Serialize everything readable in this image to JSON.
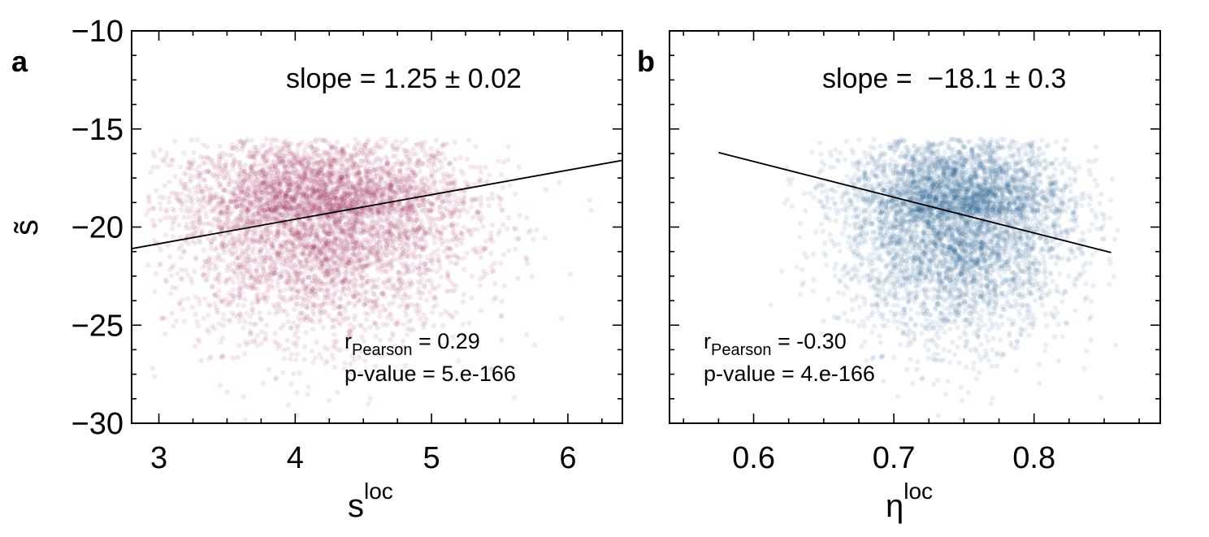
{
  "chart_data": [
    {
      "panel": "a",
      "type": "scatter",
      "xlabel": "s",
      "xlabel_sup": "loc",
      "ylabel": "s̃",
      "xlim": [
        2.8,
        6.4
      ],
      "ylim": [
        -30,
        -10
      ],
      "xticks": [
        3,
        4,
        5,
        6
      ],
      "yticks": [
        -10,
        -15,
        -20,
        -25,
        -30
      ],
      "xtick_labels": [
        "3",
        "4",
        "5",
        "6"
      ],
      "ytick_labels": [
        "−10",
        "−15",
        "−20",
        "−25",
        "−30"
      ],
      "point_color": "#8b0a45",
      "cloud": {
        "center_x": 4.2,
        "center_y": -19.3,
        "spread_x": 0.55,
        "spread_y": 2.3,
        "x_range": [
          2.9,
          6.3
        ],
        "y_range": [
          -30,
          -15.5
        ]
      },
      "fit_line": {
        "x": [
          2.8,
          6.4
        ],
        "y": [
          -21.1,
          -16.6
        ]
      },
      "slope_text": "slope = 1.25 ± 0.02",
      "r_label": "r",
      "r_sub": "Pearson",
      "r_value": " = 0.29",
      "p_text": "p-value = 5.e-166"
    },
    {
      "panel": "b",
      "type": "scatter",
      "xlabel": "η",
      "xlabel_sup": "loc",
      "xlim": [
        0.54,
        0.89
      ],
      "ylim": [
        -30,
        -10
      ],
      "xticks": [
        0.6,
        0.7,
        0.8
      ],
      "yticks": [
        -10,
        -15,
        -20,
        -25,
        -30
      ],
      "xtick_labels": [
        "0.6",
        "0.7",
        "0.8"
      ],
      "point_color": "#0a4a80",
      "cloud": {
        "center_x": 0.745,
        "center_y": -19.3,
        "spread_x": 0.04,
        "spread_y": 2.3,
        "x_range": [
          0.57,
          0.86
        ],
        "y_range": [
          -30,
          -15.5
        ]
      },
      "fit_line": {
        "x": [
          0.575,
          0.855
        ],
        "y": [
          -16.2,
          -21.3
        ]
      },
      "slope_text": "slope =  −18.1 ± 0.3",
      "r_label": "r",
      "r_sub": "Pearson",
      "r_value": " = -0.30",
      "p_text": "p-value = 4.e-166"
    }
  ]
}
